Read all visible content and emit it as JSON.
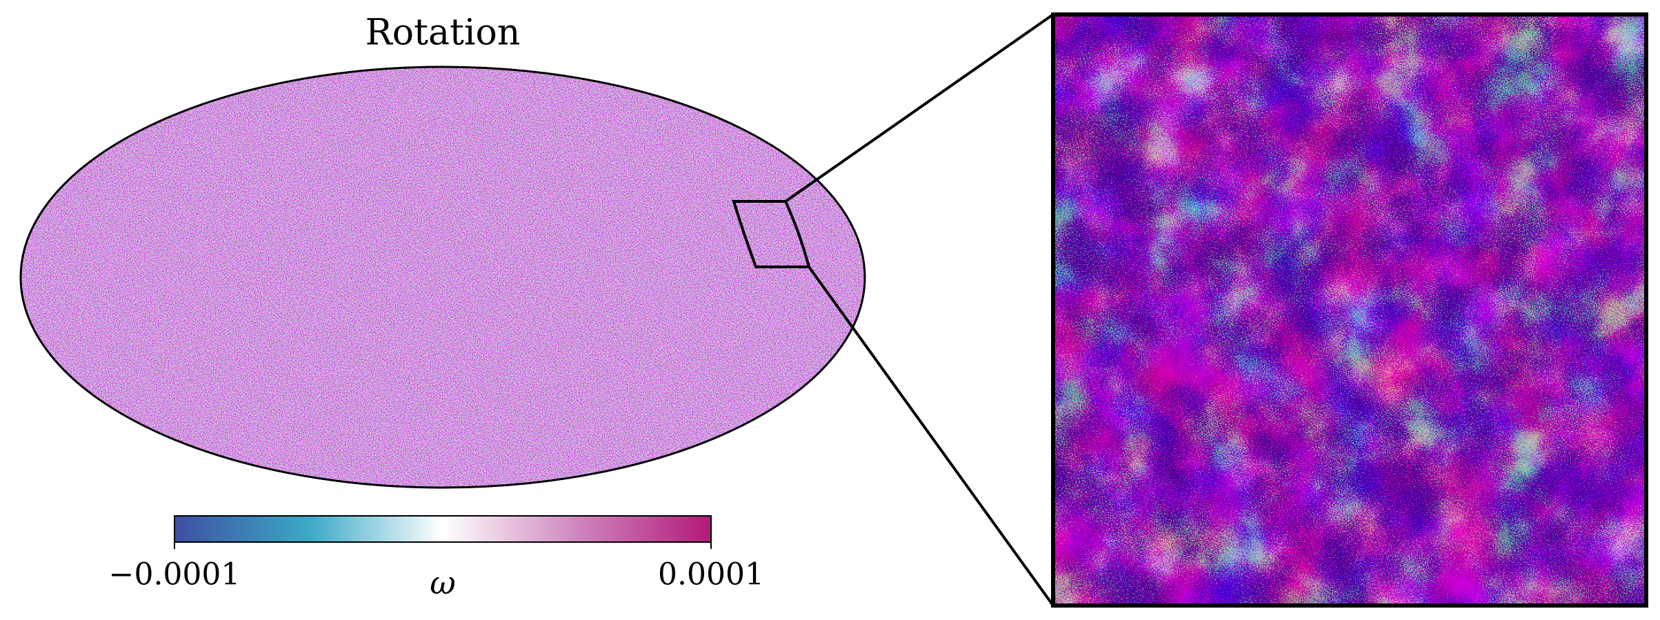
{
  "chart_data": {
    "type": "map",
    "title": "Rotation",
    "colorbar": {
      "label": "ω",
      "lim": [
        -0.0001,
        0.0001
      ],
      "ticks": [
        {
          "value": -0.0001,
          "label": "−0.0001"
        },
        0.0001
      ],
      "colormap": [
        "#3f4fa3",
        "#3aa9c6",
        "#ffffff",
        "#cf86bf",
        "#b3197a"
      ]
    }
  }
}
